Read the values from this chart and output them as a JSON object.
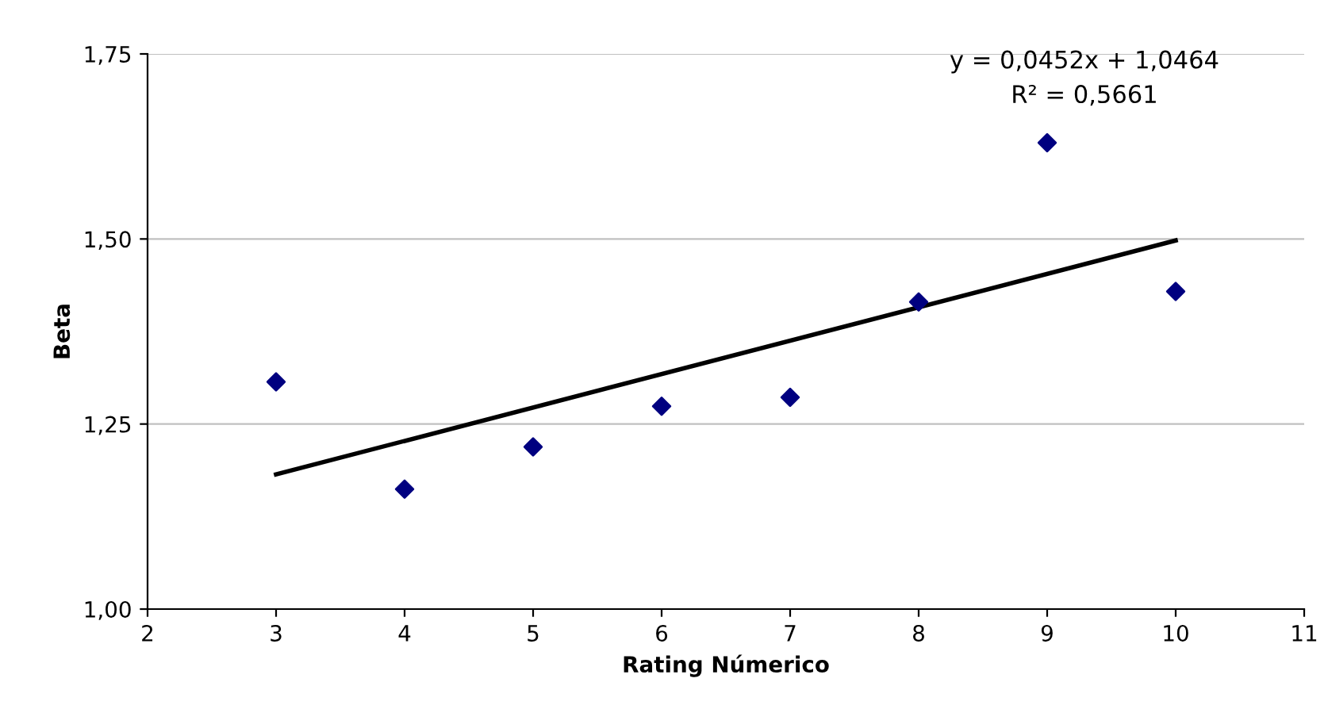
{
  "chart_data": {
    "type": "scatter",
    "xlabel": "Rating Númerico",
    "ylabel": "Beta",
    "xlim": [
      2,
      11
    ],
    "xticks": [
      2,
      3,
      4,
      5,
      6,
      7,
      8,
      9,
      10,
      11
    ],
    "ylim": [
      1.0,
      1.75
    ],
    "yticks": [
      {
        "value": 1.0,
        "label": "1,00"
      },
      {
        "value": 1.25,
        "label": "1,25"
      },
      {
        "value": 1.5,
        "label": "1,50"
      },
      {
        "value": 1.75,
        "label": "1,75"
      }
    ],
    "grid": "y",
    "marker": "diamond",
    "legend": false,
    "series": [
      {
        "color": "#000080",
        "x": [
          3,
          4,
          5,
          6,
          7,
          8,
          9,
          10
        ],
        "values": [
          1.307,
          1.162,
          1.219,
          1.274,
          1.286,
          1.415,
          1.63,
          1.429
        ]
      },
      {
        "type": "line",
        "color": "#000000",
        "x": [
          3,
          10
        ],
        "values": [
          1.182,
          1.498
        ],
        "line_style": "solid",
        "marker": "none"
      }
    ],
    "annotations": [
      "y = 0,0452x + 1,0464\nR² = 0,5661"
    ]
  }
}
